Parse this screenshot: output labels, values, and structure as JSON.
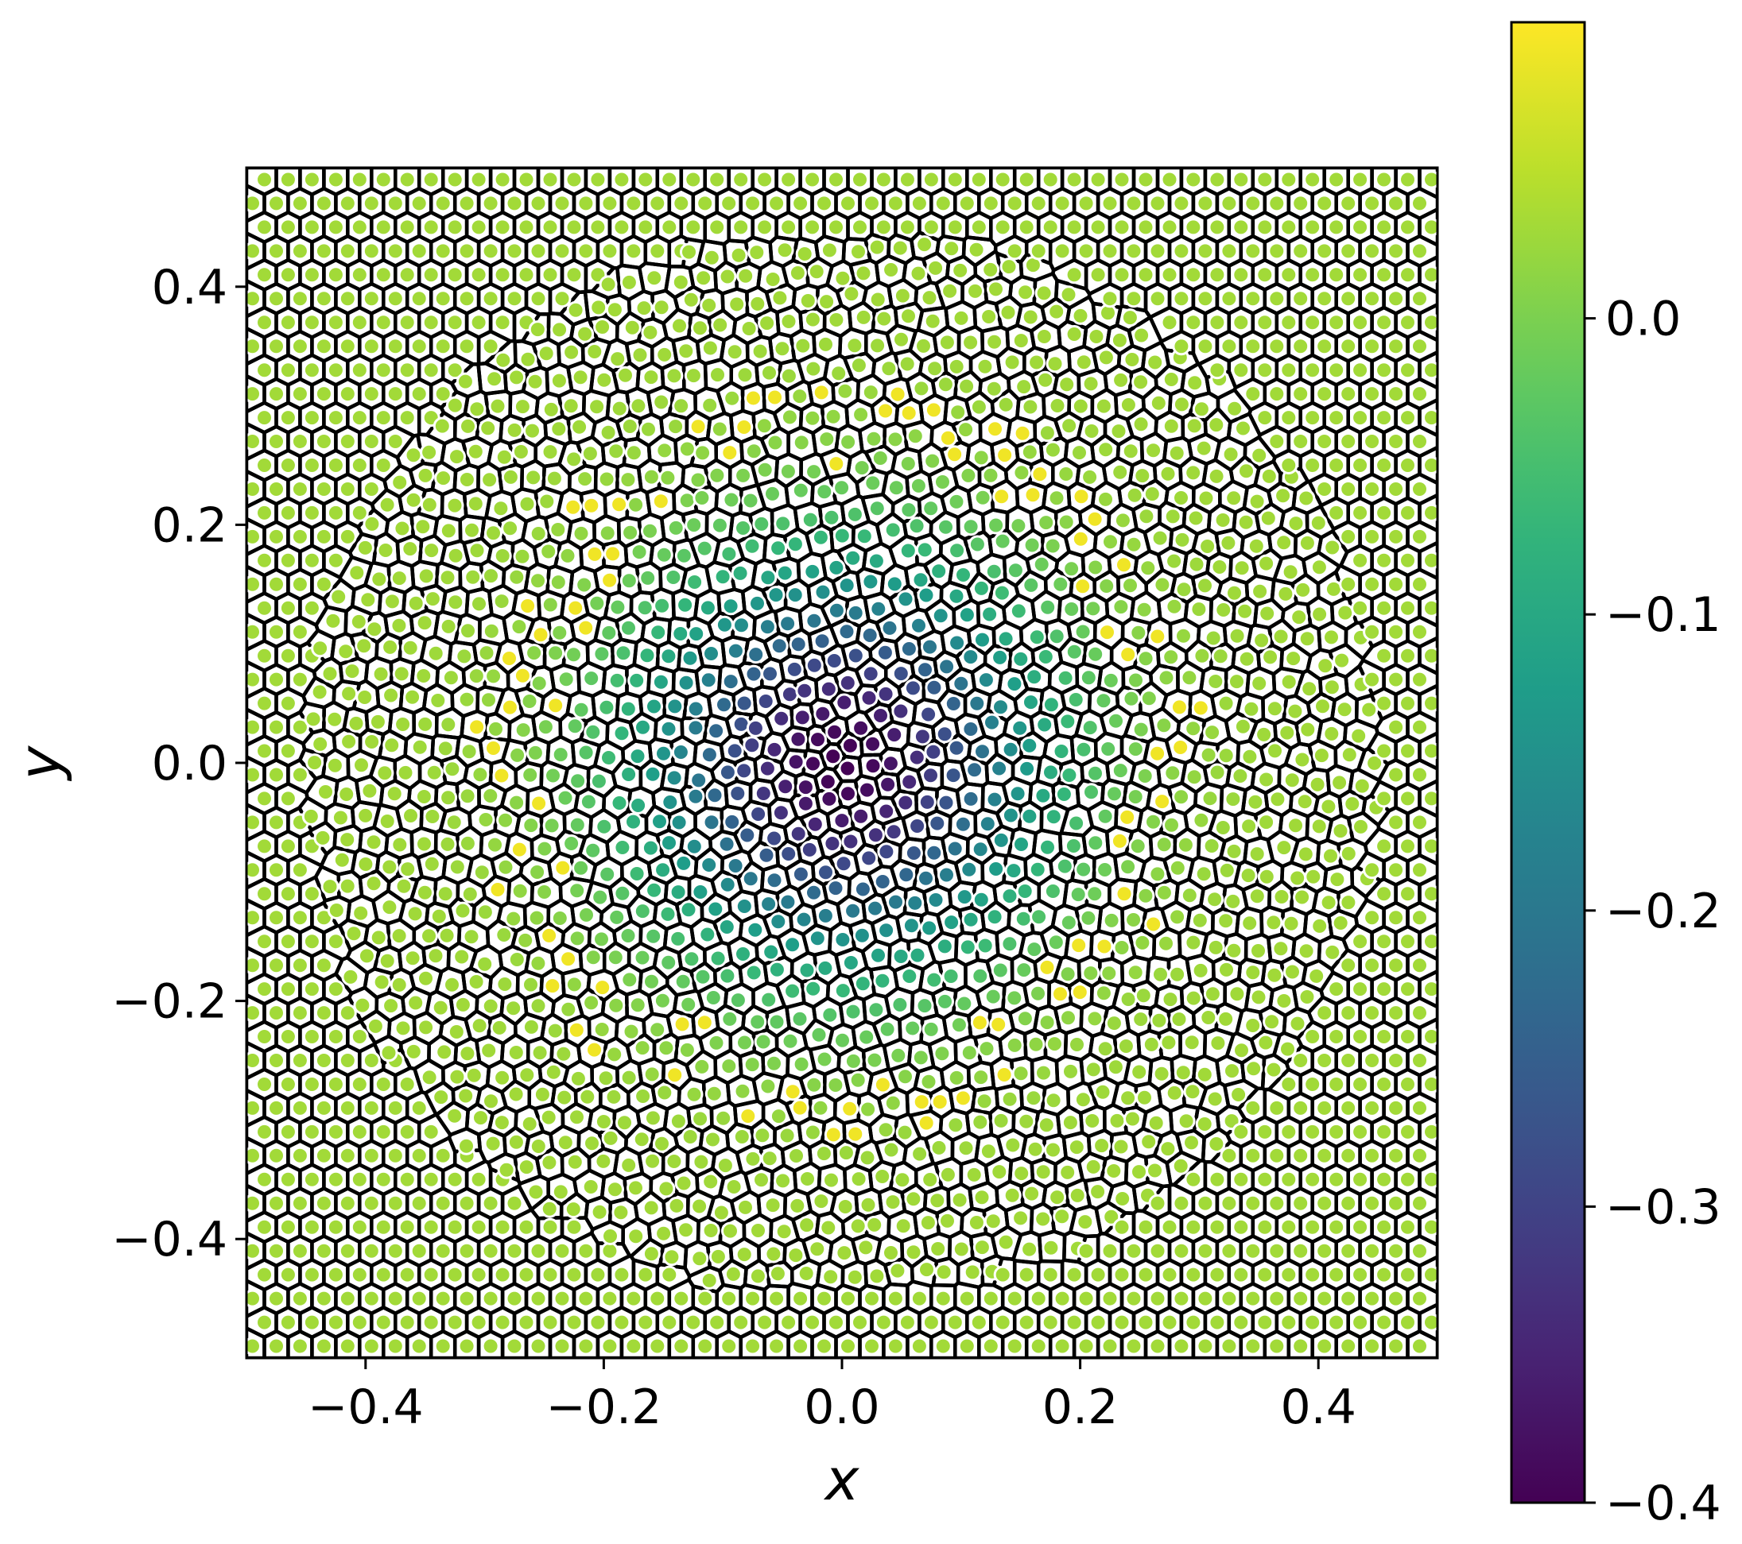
{
  "chart_data": {
    "type": "scatter",
    "subtype": "voronoi-tessellation",
    "title": "",
    "xlabel": "x",
    "ylabel": "y",
    "xlim": [
      -0.5,
      0.5
    ],
    "ylim": [
      -0.5,
      0.5
    ],
    "xticks": [
      -0.4,
      -0.2,
      0.0,
      0.2,
      0.4
    ],
    "xtick_labels": [
      "−0.4",
      "−0.2",
      "0.0",
      "0.2",
      "0.4"
    ],
    "yticks": [
      -0.4,
      -0.2,
      0.0,
      0.2,
      0.4
    ],
    "ytick_labels": [
      "−0.4",
      "−0.2",
      "0.0",
      "0.2",
      "0.4"
    ],
    "grid": false,
    "colormap": "viridis",
    "colorbar": {
      "range": [
        -0.4,
        0.1
      ],
      "ticks": [
        -0.4,
        -0.3,
        -0.2,
        -0.1,
        0.0
      ],
      "tick_labels": [
        "−0.4",
        "−0.3",
        "−0.2",
        "−0.1",
        "0.0"
      ]
    },
    "field": {
      "description_of_values": "radially symmetric dip centred at origin",
      "center": [
        0.0,
        0.0
      ],
      "min_value": -0.4,
      "background_value": 0.03,
      "defect_ring_value": 0.09,
      "defect_ring_radius": 0.28
    },
    "points_per_side": 50,
    "colors": {
      "cell_edge": "#000000",
      "marker_edge": "#ffffff"
    }
  }
}
